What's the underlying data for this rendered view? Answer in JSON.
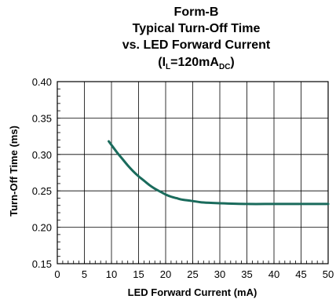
{
  "chart_data": {
    "type": "line",
    "title_lines": [
      "Form-B",
      "Typical Turn-Off Time",
      "vs. LED Forward Current"
    ],
    "condition": {
      "prefix": "(I",
      "sub1": "L",
      "middle": "=120mA",
      "sub2": "DC",
      "suffix": ")"
    },
    "xlabel": "LED Forward Current (mA)",
    "ylabel": "Turn-Off Time (ms)",
    "xlim": [
      0,
      50
    ],
    "ylim": [
      0.15,
      0.4
    ],
    "x_ticks": [
      0,
      5,
      10,
      15,
      20,
      25,
      30,
      35,
      40,
      45,
      50
    ],
    "x_tick_labels": [
      "0",
      "5",
      "10",
      "15",
      "20",
      "25",
      "30",
      "35",
      "40",
      "45",
      "50"
    ],
    "y_ticks": [
      0.15,
      0.2,
      0.25,
      0.3,
      0.35,
      0.4
    ],
    "y_tick_labels": [
      "0.15",
      "0.20",
      "0.25",
      "0.30",
      "0.35",
      "0.40"
    ],
    "grid": true,
    "line_color": "#1a6b5c",
    "series": [
      {
        "x": [
          9.5,
          10,
          11,
          12,
          13,
          14,
          15,
          16,
          17,
          18,
          19,
          20,
          21,
          22,
          23,
          24,
          25,
          27,
          30,
          35,
          40,
          45,
          50
        ],
        "y": [
          0.318,
          0.313,
          0.303,
          0.294,
          0.285,
          0.277,
          0.27,
          0.264,
          0.258,
          0.253,
          0.249,
          0.245,
          0.242,
          0.24,
          0.238,
          0.237,
          0.236,
          0.234,
          0.233,
          0.232,
          0.232,
          0.232,
          0.232
        ]
      }
    ]
  }
}
